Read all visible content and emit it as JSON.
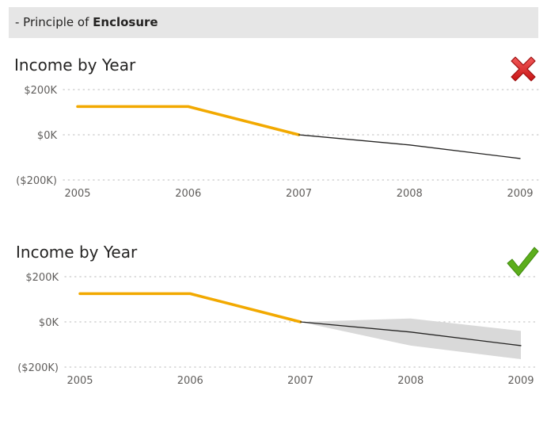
{
  "header": {
    "prefix": "- Principle of ",
    "emphasis": "Enclosure"
  },
  "panels": [
    {
      "id": "bad",
      "title": "Income by Year",
      "verdict_icon": "red-x-icon",
      "colors": {
        "actual": "#F2A900",
        "forecast": "#252423",
        "band": "#d9d9d9",
        "grid": "#c8c8c8"
      }
    },
    {
      "id": "good",
      "title": "Income by Year",
      "verdict_icon": "green-check-icon",
      "colors": {
        "actual": "#F2A900",
        "forecast": "#252423",
        "band": "#d9d9d9",
        "grid": "#c8c8c8"
      }
    }
  ],
  "chart_data": [
    {
      "type": "line",
      "title": "Income by Year",
      "x": [
        "2005",
        "2006",
        "2007",
        "2008",
        "2009"
      ],
      "y_ticks": [
        "$200K",
        "$0K",
        "($200K)"
      ],
      "y_tick_values": [
        200,
        0,
        -200
      ],
      "ylim": [
        -200,
        200
      ],
      "grid": true,
      "series": [
        {
          "kind": "actual",
          "x": [
            "2005",
            "2006",
            "2007"
          ],
          "values": [
            125,
            125,
            0
          ]
        },
        {
          "kind": "forecast",
          "x": [
            "2007",
            "2008",
            "2009"
          ],
          "values": [
            0,
            -45,
            -105
          ]
        }
      ]
    },
    {
      "type": "line",
      "title": "Income by Year",
      "x": [
        "2005",
        "2006",
        "2007",
        "2008",
        "2009"
      ],
      "y_ticks": [
        "$200K",
        "$0K",
        "($200K)"
      ],
      "y_tick_values": [
        200,
        0,
        -200
      ],
      "ylim": [
        -200,
        200
      ],
      "grid": true,
      "series": [
        {
          "kind": "actual",
          "x": [
            "2005",
            "2006",
            "2007"
          ],
          "values": [
            125,
            125,
            0
          ]
        },
        {
          "kind": "forecast",
          "x": [
            "2007",
            "2008",
            "2009"
          ],
          "values": [
            0,
            -45,
            -105
          ]
        },
        {
          "kind": "band",
          "x": [
            "2007",
            "2008",
            "2009"
          ],
          "upper": [
            0,
            15,
            -40
          ],
          "lower": [
            0,
            -105,
            -165
          ]
        }
      ]
    }
  ]
}
